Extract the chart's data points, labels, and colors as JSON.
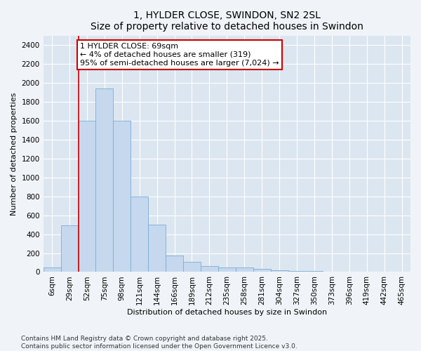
{
  "title": "1, HYLDER CLOSE, SWINDON, SN2 2SL",
  "subtitle": "Size of property relative to detached houses in Swindon",
  "xlabel": "Distribution of detached houses by size in Swindon",
  "ylabel": "Number of detached properties",
  "categories": [
    "6sqm",
    "29sqm",
    "52sqm",
    "75sqm",
    "98sqm",
    "121sqm",
    "144sqm",
    "166sqm",
    "189sqm",
    "212sqm",
    "235sqm",
    "258sqm",
    "281sqm",
    "304sqm",
    "327sqm",
    "350sqm",
    "373sqm",
    "396sqm",
    "419sqm",
    "442sqm",
    "465sqm"
  ],
  "values": [
    50,
    490,
    1600,
    1940,
    1600,
    800,
    500,
    175,
    110,
    60,
    45,
    45,
    35,
    20,
    10,
    10,
    5,
    3,
    3,
    0,
    3
  ],
  "bar_color": "#c5d8ee",
  "bar_edge_color": "#7aadd4",
  "vline_x": 1.5,
  "vline_color": "#cc0000",
  "annotation_text": "1 HYLDER CLOSE: 69sqm\n← 4% of detached houses are smaller (319)\n95% of semi-detached houses are larger (7,024) →",
  "annotation_box_color": "#ffffff",
  "annotation_box_edge_color": "#cc0000",
  "ylim": [
    0,
    2500
  ],
  "yticks": [
    0,
    200,
    400,
    600,
    800,
    1000,
    1200,
    1400,
    1600,
    1800,
    2000,
    2200,
    2400
  ],
  "bg_color": "#dce6f0",
  "grid_color": "#ffffff",
  "fig_color": "#f0f4f8",
  "footer": "Contains HM Land Registry data © Crown copyright and database right 2025.\nContains public sector information licensed under the Open Government Licence v3.0.",
  "title_fontsize": 10,
  "axis_label_fontsize": 8,
  "tick_fontsize": 7.5,
  "annotation_fontsize": 8,
  "footer_fontsize": 6.5
}
